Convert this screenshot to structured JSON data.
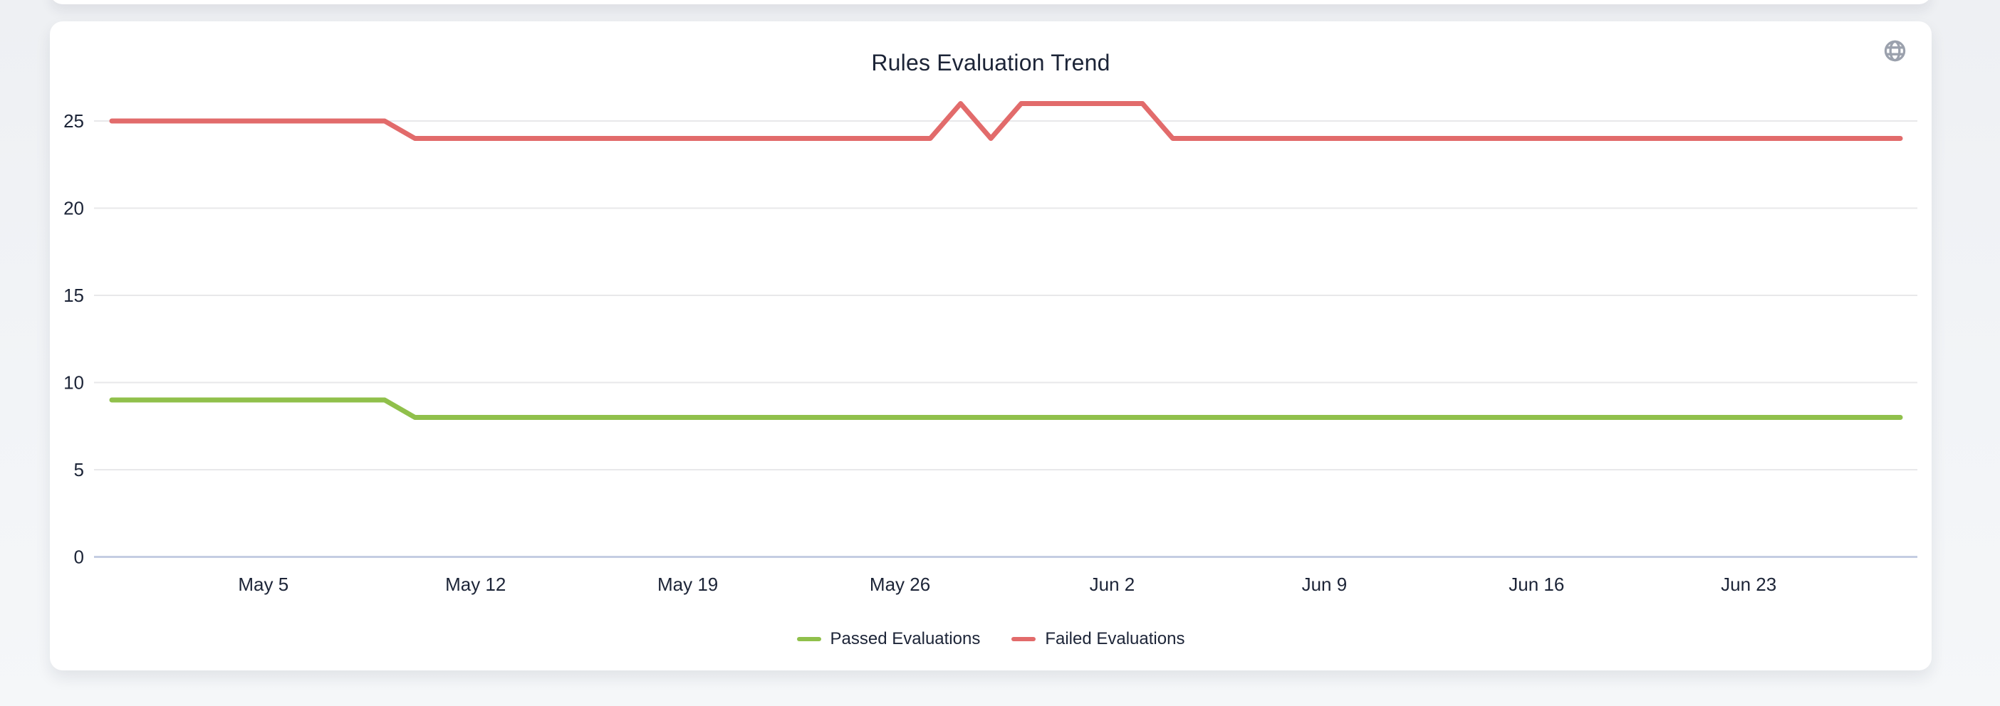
{
  "page": {
    "background": "#f0f2f5",
    "card_background": "#ffffff"
  },
  "header": {
    "icon": "globe",
    "icon_color": "#9ba1ad"
  },
  "chart_data": {
    "type": "line",
    "title": "Rules Evaluation Trend",
    "xlabel": "",
    "ylabel": "",
    "ylim": [
      0,
      27.5
    ],
    "grid": "horizontal",
    "legend_position": "bottom",
    "label_color": "#1c2437",
    "grid_color": "#e8e8ea",
    "axis_line_color": "#c4cde2",
    "y_ticks": [
      0,
      5,
      10,
      15,
      20,
      25
    ],
    "x_tick_labels": [
      "May 5",
      "May 12",
      "May 19",
      "May 26",
      "Jun 2",
      "Jun 9",
      "Jun 16",
      "Jun 23"
    ],
    "x_tick_indices": [
      5,
      12,
      19,
      26,
      33,
      40,
      47,
      54
    ],
    "x": [
      "Apr 30",
      "May 1",
      "May 2",
      "May 3",
      "May 4",
      "May 5",
      "May 6",
      "May 7",
      "May 8",
      "May 9",
      "May 10",
      "May 11",
      "May 12",
      "May 13",
      "May 14",
      "May 15",
      "May 16",
      "May 17",
      "May 18",
      "May 19",
      "May 20",
      "May 21",
      "May 22",
      "May 23",
      "May 24",
      "May 25",
      "May 26",
      "May 27",
      "May 28",
      "May 29",
      "May 30",
      "May 31",
      "Jun 1",
      "Jun 2",
      "Jun 3",
      "Jun 4",
      "Jun 5",
      "Jun 6",
      "Jun 7",
      "Jun 8",
      "Jun 9",
      "Jun 10",
      "Jun 11",
      "Jun 12",
      "Jun 13",
      "Jun 14",
      "Jun 15",
      "Jun 16",
      "Jun 17",
      "Jun 18",
      "Jun 19",
      "Jun 20",
      "Jun 21",
      "Jun 22",
      "Jun 23",
      "Jun 24",
      "Jun 25",
      "Jun 26",
      "Jun 27",
      "Jun 28"
    ],
    "series": [
      {
        "name": "Passed Evaluations",
        "color": "#90c04b",
        "values": [
          9,
          9,
          9,
          9,
          9,
          9,
          9,
          9,
          9,
          9,
          8,
          8,
          8,
          8,
          8,
          8,
          8,
          8,
          8,
          8,
          8,
          8,
          8,
          8,
          8,
          8,
          8,
          8,
          8,
          8,
          8,
          8,
          8,
          8,
          8,
          8,
          8,
          8,
          8,
          8,
          8,
          8,
          8,
          8,
          8,
          8,
          8,
          8,
          8,
          8,
          8,
          8,
          8,
          8,
          8,
          8,
          8,
          8,
          8,
          8
        ]
      },
      {
        "name": "Failed Evaluations",
        "color": "#e26b6b",
        "values": [
          25,
          25,
          25,
          25,
          25,
          25,
          25,
          25,
          25,
          25,
          24,
          24,
          24,
          24,
          24,
          24,
          24,
          24,
          24,
          24,
          24,
          24,
          24,
          24,
          24,
          24,
          24,
          24,
          26,
          24,
          26,
          26,
          26,
          26,
          26,
          24,
          24,
          24,
          24,
          24,
          24,
          24,
          24,
          24,
          24,
          24,
          24,
          24,
          24,
          24,
          24,
          24,
          24,
          24,
          24,
          24,
          24,
          24,
          24,
          24
        ]
      }
    ]
  }
}
